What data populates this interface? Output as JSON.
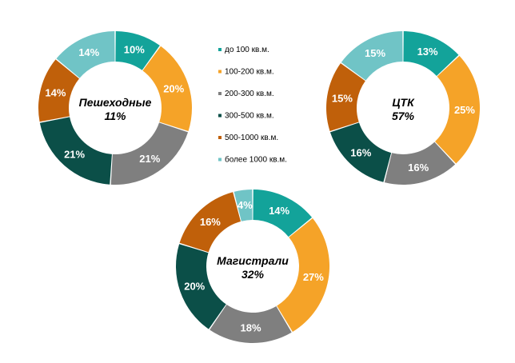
{
  "chart_data": [
    {
      "type": "pie",
      "donut": true,
      "center_label": [
        "Пешеходные",
        "11%"
      ],
      "categories": [
        "до 100 кв.м.",
        "100-200 кв.м.",
        "200-300 кв.м.",
        "300-500 кв.м.",
        "500-1000 кв.м.",
        "более 1000 кв.м."
      ],
      "values": [
        10,
        20,
        21,
        21,
        14,
        14
      ],
      "labels": [
        "10%",
        "20%",
        "21%",
        "21%",
        "14%",
        "14%"
      ]
    },
    {
      "type": "pie",
      "donut": true,
      "center_label": [
        "ЦТК",
        "57%"
      ],
      "categories": [
        "до 100 кв.м.",
        "100-200 кв.м.",
        "200-300 кв.м.",
        "300-500 кв.м.",
        "500-1000 кв.м.",
        "более 1000 кв.м."
      ],
      "values": [
        13,
        25,
        16,
        16,
        15,
        15
      ],
      "labels": [
        "13%",
        "25%",
        "16%",
        "16%",
        "15%",
        "15%"
      ]
    },
    {
      "type": "pie",
      "donut": true,
      "center_label": [
        "Магистрали",
        "32%"
      ],
      "categories": [
        "до 100 кв.м.",
        "100-200 кв.м.",
        "200-300 кв.м.",
        "300-500 кв.м.",
        "500-1000 кв.м.",
        "более 1000 кв.м."
      ],
      "values": [
        14,
        27,
        18,
        20,
        16,
        4
      ],
      "labels": [
        "14%",
        "27%",
        "18%",
        "20%",
        "16%",
        "4%"
      ]
    }
  ],
  "legend": {
    "items": [
      "до 100 кв.м.",
      "100-200 кв.м.",
      "200-300 кв.м.",
      "300-500 кв.м.",
      "500-1000 кв.м.",
      "более 1000 кв.м."
    ]
  },
  "colors": [
    "#13a39a",
    "#f5a328",
    "#7f7f7f",
    "#0b4f48",
    "#c0600a",
    "#70c4c6"
  ]
}
